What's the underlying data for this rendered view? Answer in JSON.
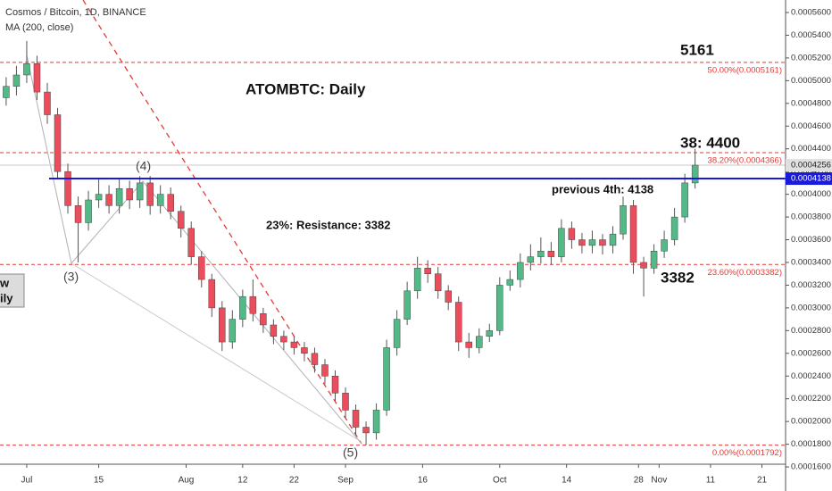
{
  "chart_data": {
    "type": "candlestick",
    "title": "Cosmos / Bitcoin, 1D, BINANCE",
    "subtitle": "MA (200, close)",
    "up_color": "#53b987",
    "down_color": "#eb4d5c",
    "xlim": [
      -5.2,
      147.6
    ],
    "xticks": [
      {
        "value": 0,
        "label": "Jul"
      },
      {
        "value": 14,
        "label": "15"
      },
      {
        "value": 31,
        "label": "Aug"
      },
      {
        "value": 42,
        "label": "12"
      },
      {
        "value": 52,
        "label": "22"
      },
      {
        "value": 62,
        "label": "Sep"
      },
      {
        "value": 77,
        "label": "16"
      },
      {
        "value": 92,
        "label": "Oct"
      },
      {
        "value": 105,
        "label": "14"
      },
      {
        "value": 119,
        "label": "28"
      },
      {
        "value": 123,
        "label": "Nov"
      },
      {
        "value": 133,
        "label": "11"
      },
      {
        "value": 143,
        "label": "21"
      }
    ],
    "ylim": [
      0.0001624,
      0.000571
    ],
    "yticks": [
      {
        "value": 0.00016,
        "label": "0.0001600"
      },
      {
        "value": 0.00018,
        "label": "0.0001800"
      },
      {
        "value": 0.0002,
        "label": "0.0002000"
      },
      {
        "value": 0.00022,
        "label": "0.0002200"
      },
      {
        "value": 0.00024,
        "label": "0.0002400"
      },
      {
        "value": 0.00026,
        "label": "0.0002600"
      },
      {
        "value": 0.00028,
        "label": "0.0002800"
      },
      {
        "value": 0.0003,
        "label": "0.0003000"
      },
      {
        "value": 0.00032,
        "label": "0.0003200"
      },
      {
        "value": 0.00034,
        "label": "0.0003400"
      },
      {
        "value": 0.00036,
        "label": "0.0003600"
      },
      {
        "value": 0.00038,
        "label": "0.0003800"
      },
      {
        "value": 0.0004,
        "label": "0.0004000"
      },
      {
        "value": 0.00042,
        "label": "0.0004200"
      },
      {
        "value": 0.00044,
        "label": "0.0004400"
      },
      {
        "value": 0.00046,
        "label": "0.0004600"
      },
      {
        "value": 0.00048,
        "label": "0.0004800"
      },
      {
        "value": 0.0005,
        "label": "0.0005000"
      },
      {
        "value": 0.00052,
        "label": "0.0005200"
      },
      {
        "value": 0.00054,
        "label": "0.0005400"
      },
      {
        "value": 0.00056,
        "label": "0.0005600"
      }
    ],
    "x": [
      -4,
      -2,
      0,
      2,
      4,
      6,
      8,
      10,
      12,
      14,
      16,
      18,
      20,
      22,
      24,
      26,
      28,
      30,
      32,
      34,
      36,
      38,
      40,
      42,
      44,
      46,
      48,
      50,
      52,
      54,
      56,
      58,
      60,
      62,
      64,
      66,
      68,
      70,
      72,
      74,
      76,
      78,
      80,
      82,
      84,
      86,
      88,
      90,
      92,
      94,
      96,
      98,
      100,
      102,
      104,
      106,
      108,
      110,
      112,
      114,
      116,
      118,
      120,
      122,
      124,
      126,
      128,
      130
    ],
    "open": [
      0.000485,
      0.000495,
      0.000505,
      0.000515,
      0.00049,
      0.00047,
      0.00042,
      0.00039,
      0.000375,
      0.000395,
      0.0004,
      0.00039,
      0.000405,
      0.000395,
      0.00041,
      0.00039,
      0.0004,
      0.000385,
      0.00037,
      0.000345,
      0.000325,
      0.0003,
      0.00027,
      0.00029,
      0.00031,
      0.000295,
      0.000285,
      0.000275,
      0.00027,
      0.000265,
      0.00026,
      0.00025,
      0.00024,
      0.000225,
      0.00021,
      0.000195,
      0.00019,
      0.00021,
      0.000265,
      0.00029,
      0.000315,
      0.000335,
      0.00033,
      0.000315,
      0.000305,
      0.00027,
      0.000265,
      0.000275,
      0.00028,
      0.00032,
      0.000325,
      0.00034,
      0.000345,
      0.00035,
      0.000345,
      0.00037,
      0.00036,
      0.000355,
      0.00036,
      0.000355,
      0.000365,
      0.00039,
      0.00034,
      0.000335,
      0.00035,
      0.00036,
      0.00038,
      0.00041
    ],
    "high": [
      0.000503,
      0.000513,
      0.000535,
      0.000522,
      0.000498,
      0.000476,
      0.000427,
      0.000398,
      0.000403,
      0.000413,
      0.000408,
      0.000413,
      0.000412,
      0.000416,
      0.000416,
      0.000408,
      0.000406,
      0.00039,
      0.000376,
      0.00035,
      0.00033,
      0.000306,
      0.000298,
      0.000316,
      0.000325,
      0.0003,
      0.00029,
      0.00028,
      0.000275,
      0.00027,
      0.000265,
      0.000255,
      0.000245,
      0.00023,
      0.000215,
      0.0002,
      0.000216,
      0.000272,
      0.000298,
      0.000323,
      0.000345,
      0.000342,
      0.000336,
      0.00032,
      0.00031,
      0.000278,
      0.000282,
      0.000286,
      0.000327,
      0.000333,
      0.000348,
      0.000356,
      0.000362,
      0.000358,
      0.000378,
      0.000376,
      0.000366,
      0.000368,
      0.000365,
      0.000372,
      0.000398,
      0.000395,
      0.000345,
      0.000356,
      0.000368,
      0.000388,
      0.000418,
      0.00044
    ],
    "low": [
      0.000478,
      0.000487,
      0.000498,
      0.000483,
      0.000462,
      0.000413,
      0.000383,
      0.00034,
      0.000368,
      0.000388,
      0.000383,
      0.000383,
      0.000387,
      0.000388,
      0.000382,
      0.000383,
      0.000378,
      0.000362,
      0.000338,
      0.000318,
      0.000292,
      0.000262,
      0.000264,
      0.000283,
      0.000288,
      0.000278,
      0.000268,
      0.000263,
      0.000259,
      0.000253,
      0.000243,
      0.000233,
      0.000218,
      0.000203,
      0.000188,
      0.0001792,
      0.000184,
      0.000205,
      0.000258,
      0.000285,
      0.000308,
      0.000322,
      0.000308,
      0.000298,
      0.000262,
      0.000256,
      0.00026,
      0.00027,
      0.000276,
      0.000315,
      0.000318,
      0.000333,
      0.000339,
      0.000338,
      0.00034,
      0.000352,
      0.000348,
      0.000348,
      0.000347,
      0.000348,
      0.00036,
      0.00033,
      0.00031,
      0.00033,
      0.000344,
      0.000355,
      0.000375,
      0.000405
    ],
    "close": [
      0.000495,
      0.000505,
      0.000515,
      0.00049,
      0.00047,
      0.00042,
      0.00039,
      0.000375,
      0.000395,
      0.0004,
      0.00039,
      0.000405,
      0.000395,
      0.00041,
      0.00039,
      0.0004,
      0.000385,
      0.00037,
      0.000345,
      0.000325,
      0.0003,
      0.00027,
      0.00029,
      0.00031,
      0.000295,
      0.000285,
      0.000275,
      0.00027,
      0.000265,
      0.00026,
      0.00025,
      0.00024,
      0.000225,
      0.00021,
      0.000195,
      0.00019,
      0.00021,
      0.000265,
      0.00029,
      0.000315,
      0.000335,
      0.00033,
      0.000315,
      0.000305,
      0.00027,
      0.000265,
      0.000275,
      0.00028,
      0.00032,
      0.000325,
      0.00034,
      0.000345,
      0.00035,
      0.000345,
      0.00037,
      0.00036,
      0.000355,
      0.00036,
      0.000355,
      0.000365,
      0.00039,
      0.00034,
      0.000335,
      0.00035,
      0.00036,
      0.00038,
      0.00041,
      0.0004256
    ],
    "levels": [
      {
        "value": 0.0005161,
        "label": "50.00%(0.0005161)"
      },
      {
        "value": 0.0004366,
        "label": "38.20%(0.0004366)"
      },
      {
        "value": 0.0003382,
        "label": "23.60%(0.0003382)"
      },
      {
        "value": 0.0001792,
        "label": "0.00%(0.0001792)"
      }
    ],
    "level_color": "#e53935",
    "support": {
      "value": 0.0004138,
      "label": "0.0004138",
      "color": "#1a1adc"
    },
    "last_price": {
      "value": 0.0004256,
      "label": "0.0004256"
    },
    "annotations": [
      "ATOMBTC: Daily",
      "5161",
      "38: 4400",
      "previous 4th: 4138",
      "23%: Resistance: 3382",
      "3382",
      "(3)",
      "(4)",
      "(5)"
    ],
    "side_box": [
      "w",
      "ily"
    ]
  }
}
